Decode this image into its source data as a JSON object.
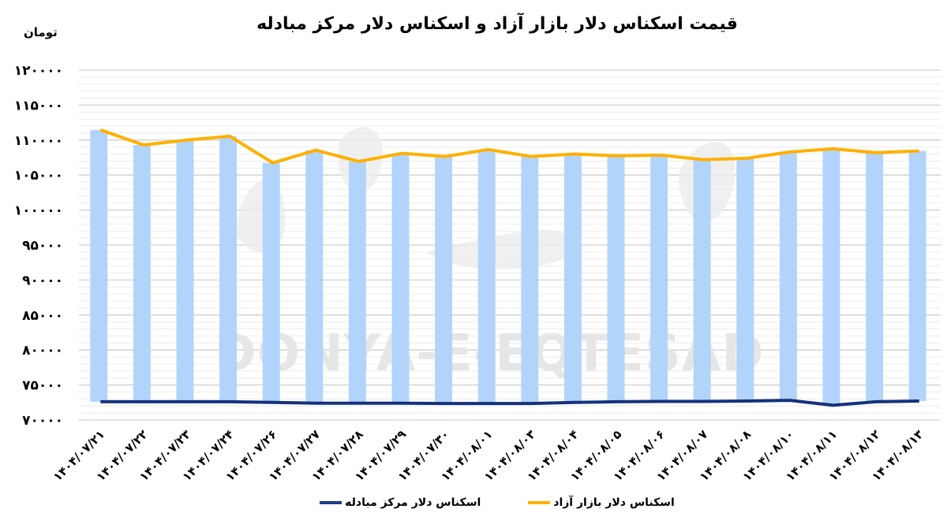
{
  "header": {
    "title": "قیمت اسکناس دلار بازار آزاد و اسکناس دلار مرکز مبادله",
    "unit": "تومان"
  },
  "watermark": {
    "latin": "DONYA-E-EQTESAD"
  },
  "legend": {
    "items": [
      {
        "label": "اسکناس دلار بازار آزاد",
        "color": "#FFB000"
      },
      {
        "label": "اسکناس دلار مرکز مبادله",
        "color": "#1F3A8A"
      }
    ]
  },
  "colors": {
    "bar": "#B3D4FA",
    "free_line": "#FFB000",
    "official_line": "#14327E",
    "grid_major": "#CFCFCF",
    "grid_minor": "#ECECEC"
  },
  "chart_data": {
    "type": "bar",
    "subtype": "floating-bar-with-lines",
    "title": "قیمت اسکناس دلار بازار آزاد و اسکناس دلار مرکز مبادله",
    "xlabel": "",
    "ylabel": "تومان",
    "ylim": [
      70000,
      120000
    ],
    "yticks": [
      70000,
      75000,
      80000,
      85000,
      90000,
      95000,
      100000,
      105000,
      110000,
      115000,
      120000
    ],
    "ytick_labels": [
      "۷۰۰۰۰",
      "۷۵۰۰۰",
      "۸۰۰۰۰",
      "۸۵۰۰۰",
      "۹۰۰۰۰",
      "۹۵۰۰۰",
      "۱۰۰۰۰۰",
      "۱۰۵۰۰۰",
      "۱۱۰۰۰۰",
      "۱۱۵۰۰۰",
      "۱۲۰۰۰۰"
    ],
    "grid": {
      "major_step": 5000,
      "minor_step": 1000
    },
    "legend_position": "bottom",
    "categories": [
      "۱۴۰۴/۰۷/۲۱",
      "۱۴۰۴/۰۷/۲۲",
      "۱۴۰۴/۰۷/۲۳",
      "۱۴۰۴/۰۷/۲۴",
      "۱۴۰۴/۰۷/۲۶",
      "۱۴۰۴/۰۷/۲۷",
      "۱۴۰۴/۰۷/۲۸",
      "۱۴۰۴/۰۷/۲۹",
      "۱۴۰۴/۰۷/۳۰",
      "۱۴۰۴/۰۸/۰۱",
      "۱۴۰۴/۰۸/۰۳",
      "۱۴۰۴/۰۸/۰۴",
      "۱۴۰۴/۰۸/۰۵",
      "۱۴۰۴/۰۸/۰۶",
      "۱۴۰۴/۰۸/۰۷",
      "۱۴۰۴/۰۸/۰۸",
      "۱۴۰۴/۰۸/۱۰",
      "۱۴۰۴/۰۸/۱۱",
      "۱۴۰۴/۰۸/۱۲",
      "۱۴۰۴/۰۸/۱۳"
    ],
    "series": [
      {
        "name": "اسکناس دلار بازار آزاد",
        "type": "line",
        "color": "#FFB000",
        "values": [
          111450,
          109300,
          110000,
          110550,
          106750,
          108550,
          106950,
          108100,
          107650,
          108650,
          107650,
          108000,
          107750,
          107850,
          107200,
          107400,
          108300,
          108750,
          108200,
          108450
        ]
      },
      {
        "name": "اسکناس دلار مرکز مبادله",
        "type": "line",
        "color": "#14327E",
        "values": [
          72600,
          72600,
          72600,
          72600,
          72500,
          72400,
          72400,
          72400,
          72350,
          72350,
          72350,
          72500,
          72600,
          72650,
          72650,
          72700,
          72800,
          72100,
          72600,
          72700
        ]
      }
    ],
    "bars": {
      "description": "floating bars spanning from official rate to free-market rate",
      "color": "#B3D4FA"
    }
  }
}
